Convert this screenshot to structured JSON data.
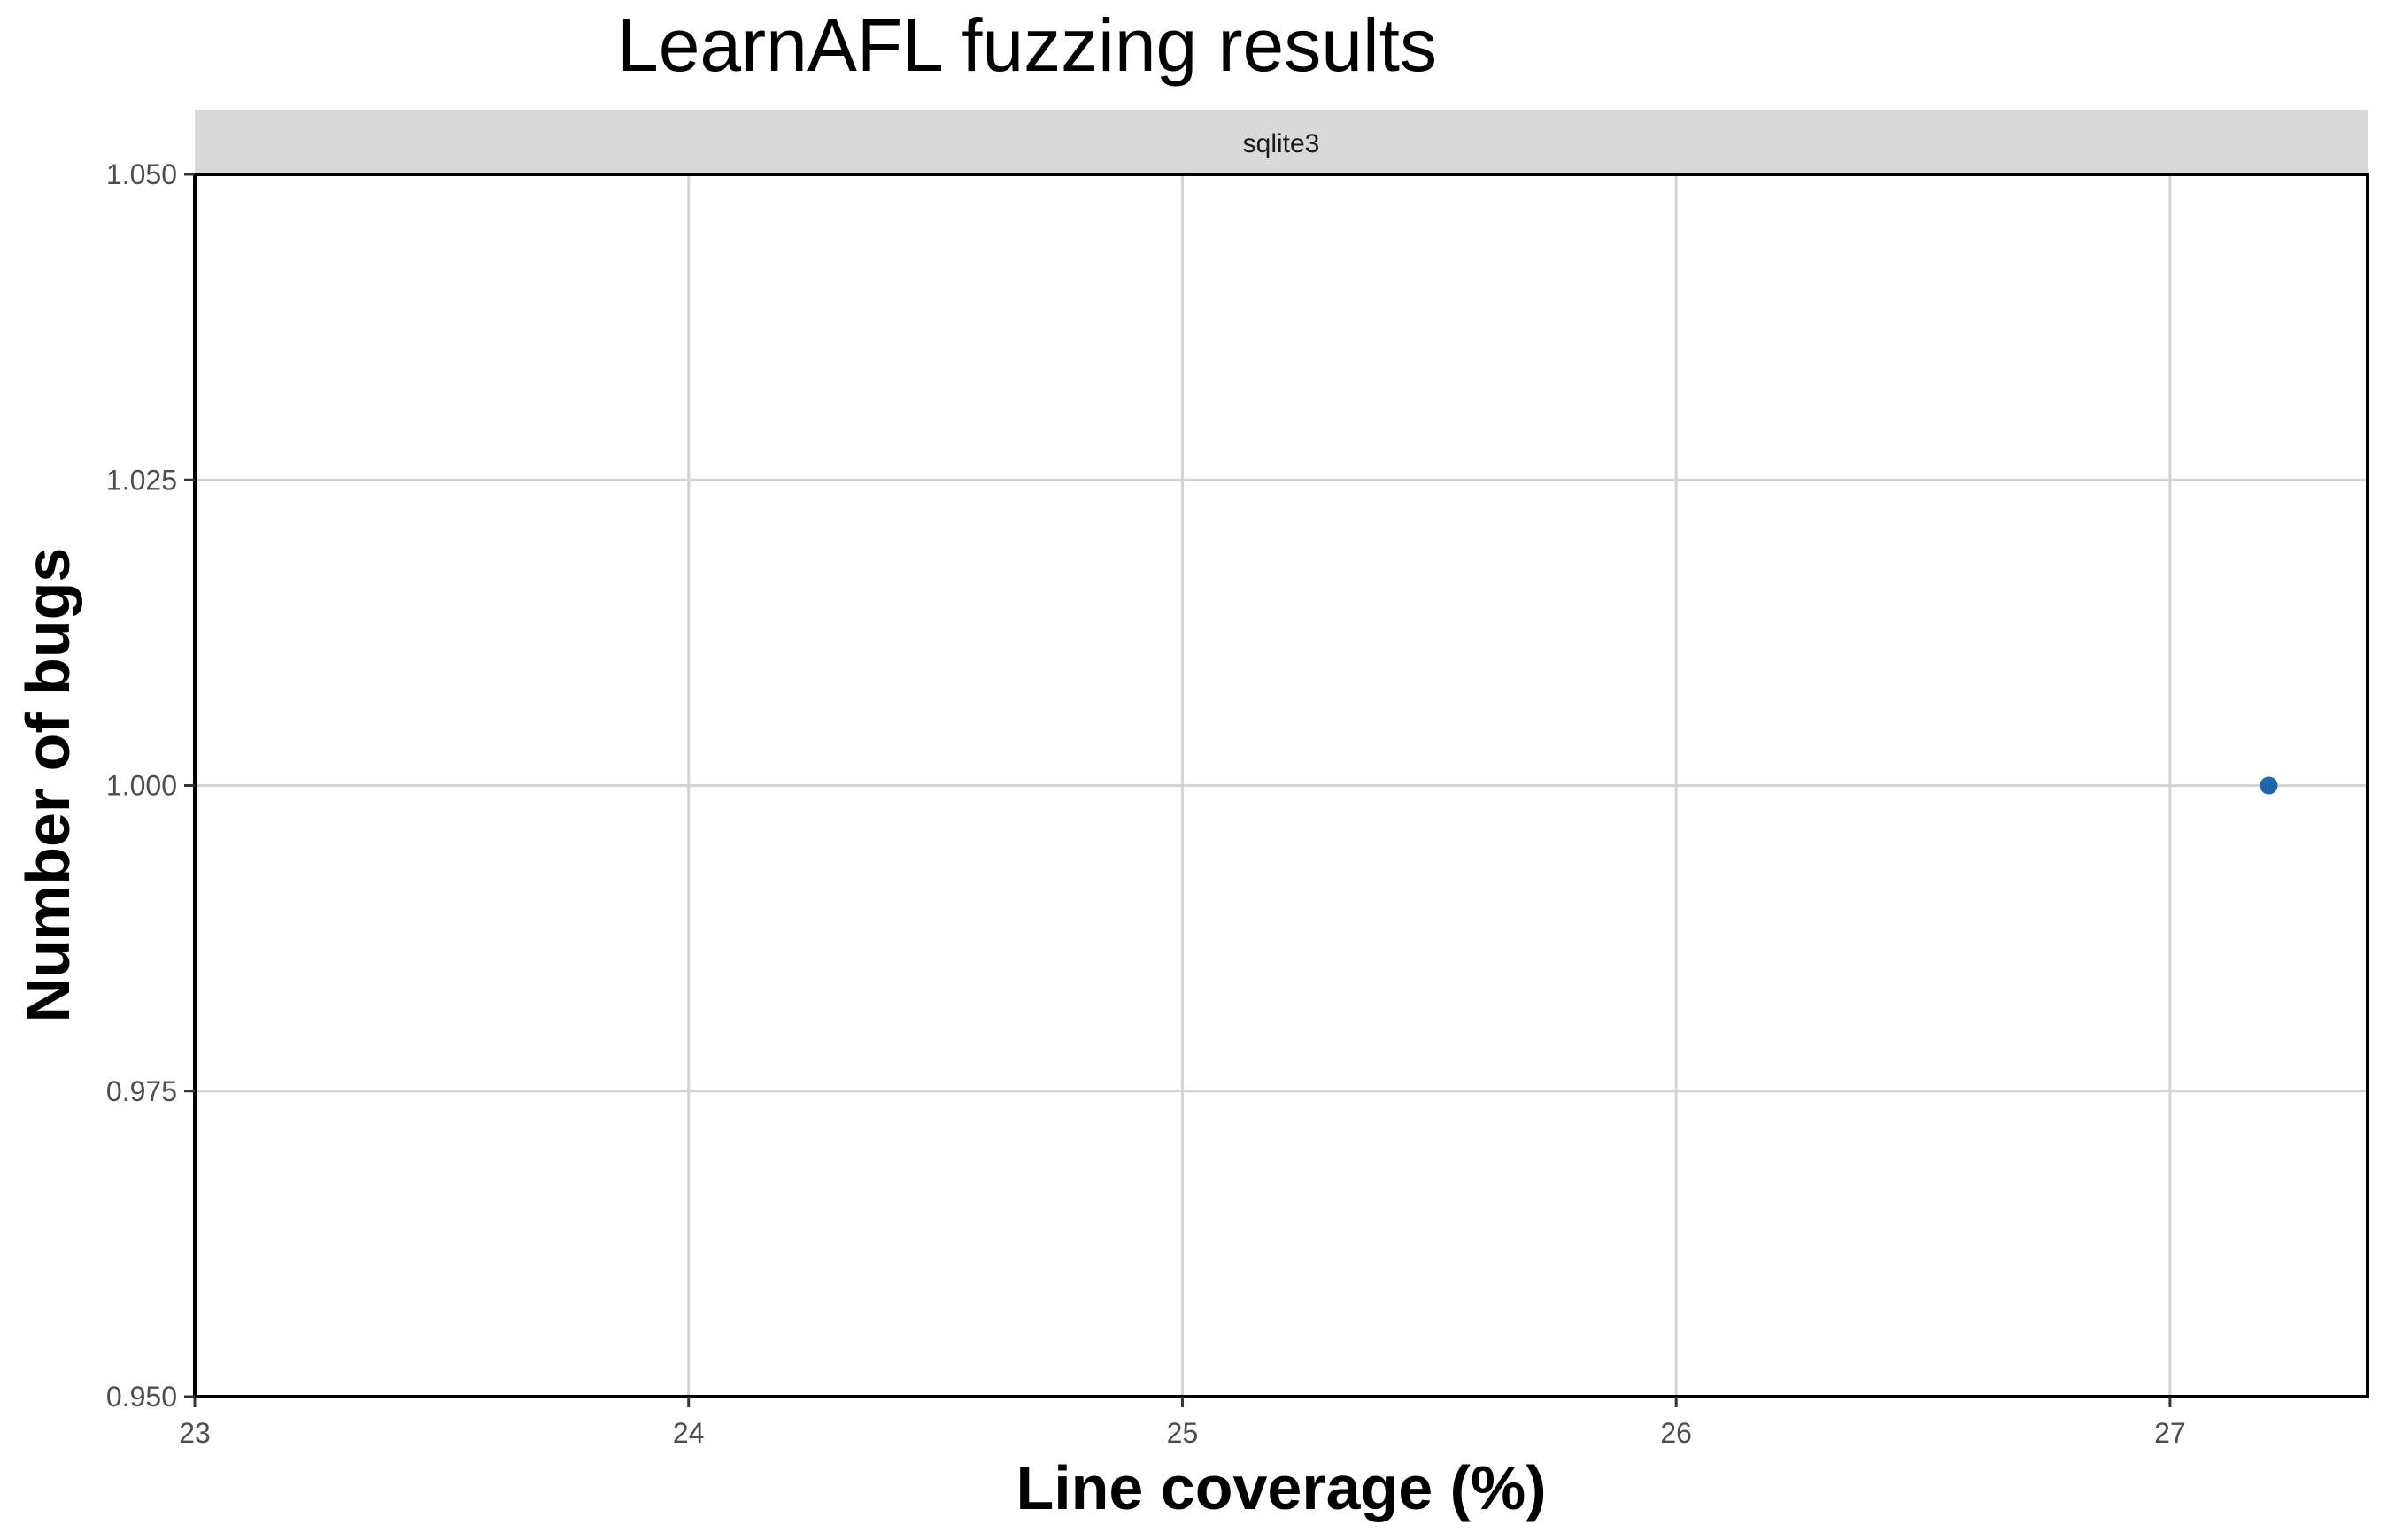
{
  "chart_data": {
    "type": "scatter",
    "title": "LearnAFL fuzzing results",
    "facet_label": "sqlite3",
    "xlabel": "Line coverage (%)",
    "ylabel": "Number of bugs",
    "xlim": [
      23,
      27.4
    ],
    "ylim": [
      0.95,
      1.05
    ],
    "x_ticks": [
      23,
      24,
      25,
      26,
      27
    ],
    "x_tick_labels": [
      "23",
      "24",
      "25",
      "26",
      "27"
    ],
    "y_ticks": [
      0.95,
      0.975,
      1.0,
      1.025,
      1.05
    ],
    "y_tick_labels": [
      "0.950",
      "0.975",
      "1.000",
      "1.025",
      "1.050"
    ],
    "grid": true,
    "points": [
      {
        "x": 27.2,
        "y": 1.0
      }
    ],
    "point_color": "#2166ac"
  }
}
